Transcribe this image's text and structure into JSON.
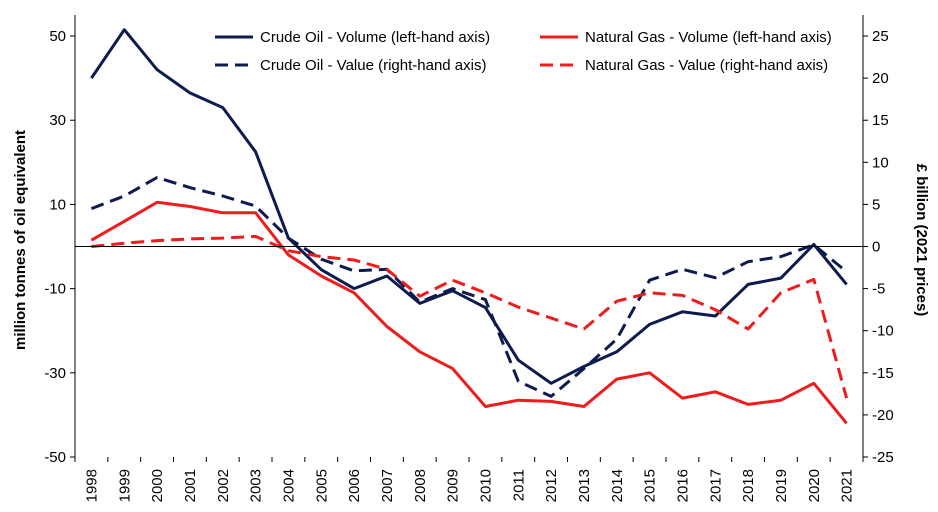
{
  "chart_data": {
    "type": "line",
    "title": "",
    "x": [
      "1998",
      "1999",
      "2000",
      "2001",
      "2002",
      "2003",
      "2004",
      "2005",
      "2006",
      "2007",
      "2008",
      "2009",
      "2010",
      "2011",
      "2012",
      "2013",
      "2014",
      "2015",
      "2016",
      "2017",
      "2018",
      "2019",
      "2020",
      "2021"
    ],
    "left_axis": {
      "label": "million tonnes of oil equivalent",
      "ylim": [
        -50,
        55
      ],
      "ticks": [
        50,
        30,
        10,
        -10,
        -30,
        -50
      ]
    },
    "right_axis": {
      "label": "£ billion (2021 prices)",
      "ylim": [
        -25,
        27.5
      ],
      "ticks": [
        25,
        20,
        15,
        10,
        5,
        0,
        -5,
        -10,
        -15,
        -20,
        -25
      ]
    },
    "grid": false,
    "legend_position": "top",
    "series": [
      {
        "name": "Crude Oil - Volume (left-hand axis)",
        "axis": "left",
        "color": "#0d1b4f",
        "dash": false,
        "values": [
          40,
          51.5,
          42,
          36.5,
          33,
          22.5,
          2,
          -5.5,
          -10,
          -7,
          -13.5,
          -10.5,
          -14.5,
          -27,
          -32.5,
          -28.5,
          -25,
          -18.5,
          -15.5,
          -16.5,
          -9,
          -7.5,
          0.5,
          -9
        ]
      },
      {
        "name": "Crude Oil - Value (right-hand axis)",
        "axis": "right",
        "color": "#0d1b4f",
        "dash": true,
        "values": [
          4.5,
          6,
          8.2,
          7,
          6,
          4.8,
          1,
          -1.5,
          -2.9,
          -2.7,
          -6.6,
          -5,
          -6.3,
          -16,
          -17.8,
          -14.5,
          -11,
          -4,
          -2.7,
          -3.7,
          -1.8,
          -1.2,
          0.2,
          -3
        ]
      },
      {
        "name": "Natural Gas - Volume (left-hand axis)",
        "axis": "left",
        "color": "#ee1c1c",
        "dash": false,
        "values": [
          1.5,
          6,
          10.5,
          9.5,
          8,
          8,
          -2,
          -7,
          -11,
          -19,
          -25,
          -29,
          -38,
          -36.5,
          -36.8,
          -38,
          -31.5,
          -30,
          -36,
          -34.5,
          -37.5,
          -36.5,
          -32.5,
          -42
        ]
      },
      {
        "name": "Natural Gas - Value (right-hand axis)",
        "axis": "right",
        "color": "#ee1c1c",
        "dash": true,
        "values": [
          0,
          0.4,
          0.7,
          0.9,
          1,
          1.2,
          -0.5,
          -1.2,
          -1.6,
          -2.7,
          -5.9,
          -4,
          -5.5,
          -7.2,
          -8.5,
          -9.8,
          -6.5,
          -5.5,
          -5.8,
          -7.5,
          -9.8,
          -5.5,
          -3.9,
          -18
        ]
      }
    ]
  }
}
